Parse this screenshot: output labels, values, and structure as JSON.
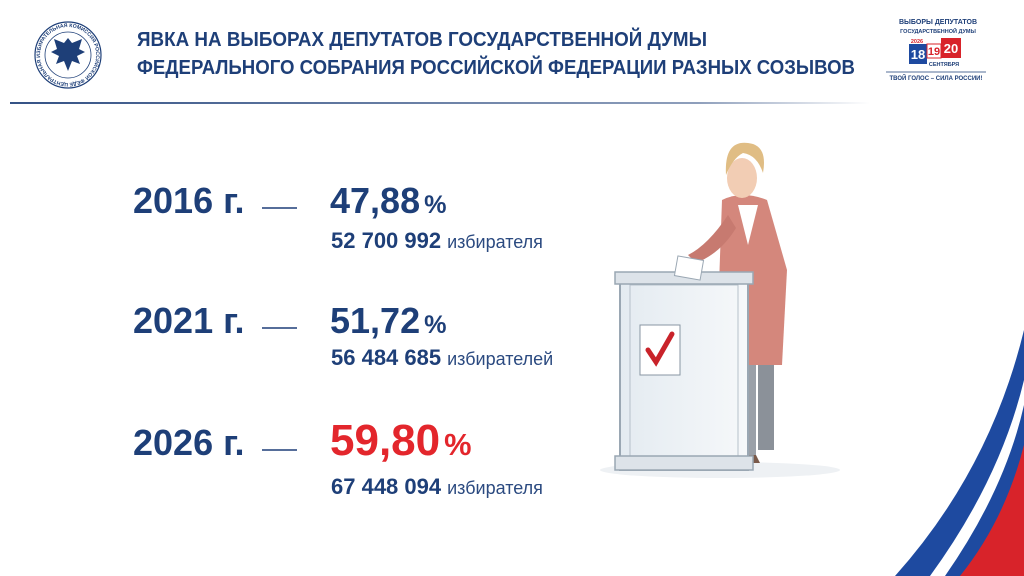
{
  "header": {
    "title_line1": "ЯВКА НА ВЫБОРАХ ДЕПУТАТОВ ГОСУДАРСТВЕННОЙ ДУМЫ",
    "title_line2": "ФЕДЕРАЛЬНОГО СОБРАНИЯ РОССИЙСКОЙ ФЕДЕРАЦИИ РАЗНЫХ СОЗЫВОВ"
  },
  "emblem_text": "ЦЕНТРАЛЬНАЯ ИЗБИРАТЕЛЬНАЯ КОМИССИЯ РОССИЙСКОЙ ФЕДЕРАЦИИ",
  "logo_right": {
    "line1": "ВЫБОРЫ ДЕПУТАТОВ",
    "line2": "ГОСУДАРСТВЕННОЙ ДУМЫ",
    "year": "2026",
    "days": [
      "18",
      "19",
      "20"
    ],
    "month": "СЕНТЯБРЯ",
    "slogan": "ТВОЙ ГОЛОС – СИЛА РОССИИ!"
  },
  "rows": [
    {
      "year": "2016 г.",
      "turnout": "47,88",
      "unit": "%",
      "voters": "52 700 992",
      "voters_label": "избирателя"
    },
    {
      "year": "2021 г.",
      "turnout": "51,72",
      "unit": "%",
      "voters": "56 484 685",
      "voters_label": "избирателей"
    },
    {
      "year": "2026 г.",
      "turnout": "59,80",
      "unit": "%",
      "voters": "67 448 094",
      "voters_label": "избирателя"
    }
  ]
}
